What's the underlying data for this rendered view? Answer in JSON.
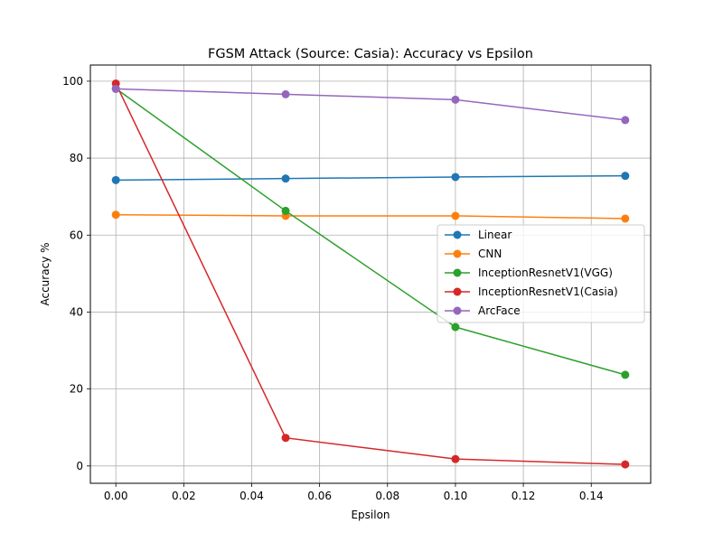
{
  "chart_data": {
    "type": "line",
    "title": "FGSM Attack (Source: Casia): Accuracy vs Epsilon",
    "xlabel": "Epsilon",
    "ylabel": "Accuracy %",
    "x": [
      0.0,
      0.05,
      0.1,
      0.15
    ],
    "xlim": [
      -0.0075,
      0.1575
    ],
    "ylim": [
      -4.5,
      104.2
    ],
    "xticks": [
      0.0,
      0.02,
      0.04,
      0.06,
      0.08,
      0.1,
      0.12,
      0.14
    ],
    "xtick_labels": [
      "0.00",
      "0.02",
      "0.04",
      "0.06",
      "0.08",
      "0.10",
      "0.12",
      "0.14"
    ],
    "yticks": [
      0,
      20,
      40,
      60,
      80,
      100
    ],
    "ytick_labels": [
      "0",
      "20",
      "40",
      "60",
      "80",
      "100"
    ],
    "grid": true,
    "legend_position": "center-right",
    "series": [
      {
        "name": "Linear",
        "color": "#1f77b4",
        "values": [
          74.3,
          74.7,
          75.1,
          75.4
        ]
      },
      {
        "name": "CNN",
        "color": "#ff7f0e",
        "values": [
          65.3,
          65.0,
          65.0,
          64.3
        ]
      },
      {
        "name": "InceptionResnetV1(VGG)",
        "color": "#2ca02c",
        "values": [
          98.1,
          66.3,
          36.1,
          23.7
        ]
      },
      {
        "name": "InceptionResnetV1(Casia)",
        "color": "#d62728",
        "values": [
          99.4,
          7.3,
          1.8,
          0.4
        ]
      },
      {
        "name": "ArcFace",
        "color": "#9467bd",
        "values": [
          98.0,
          96.6,
          95.2,
          89.9
        ]
      }
    ]
  }
}
